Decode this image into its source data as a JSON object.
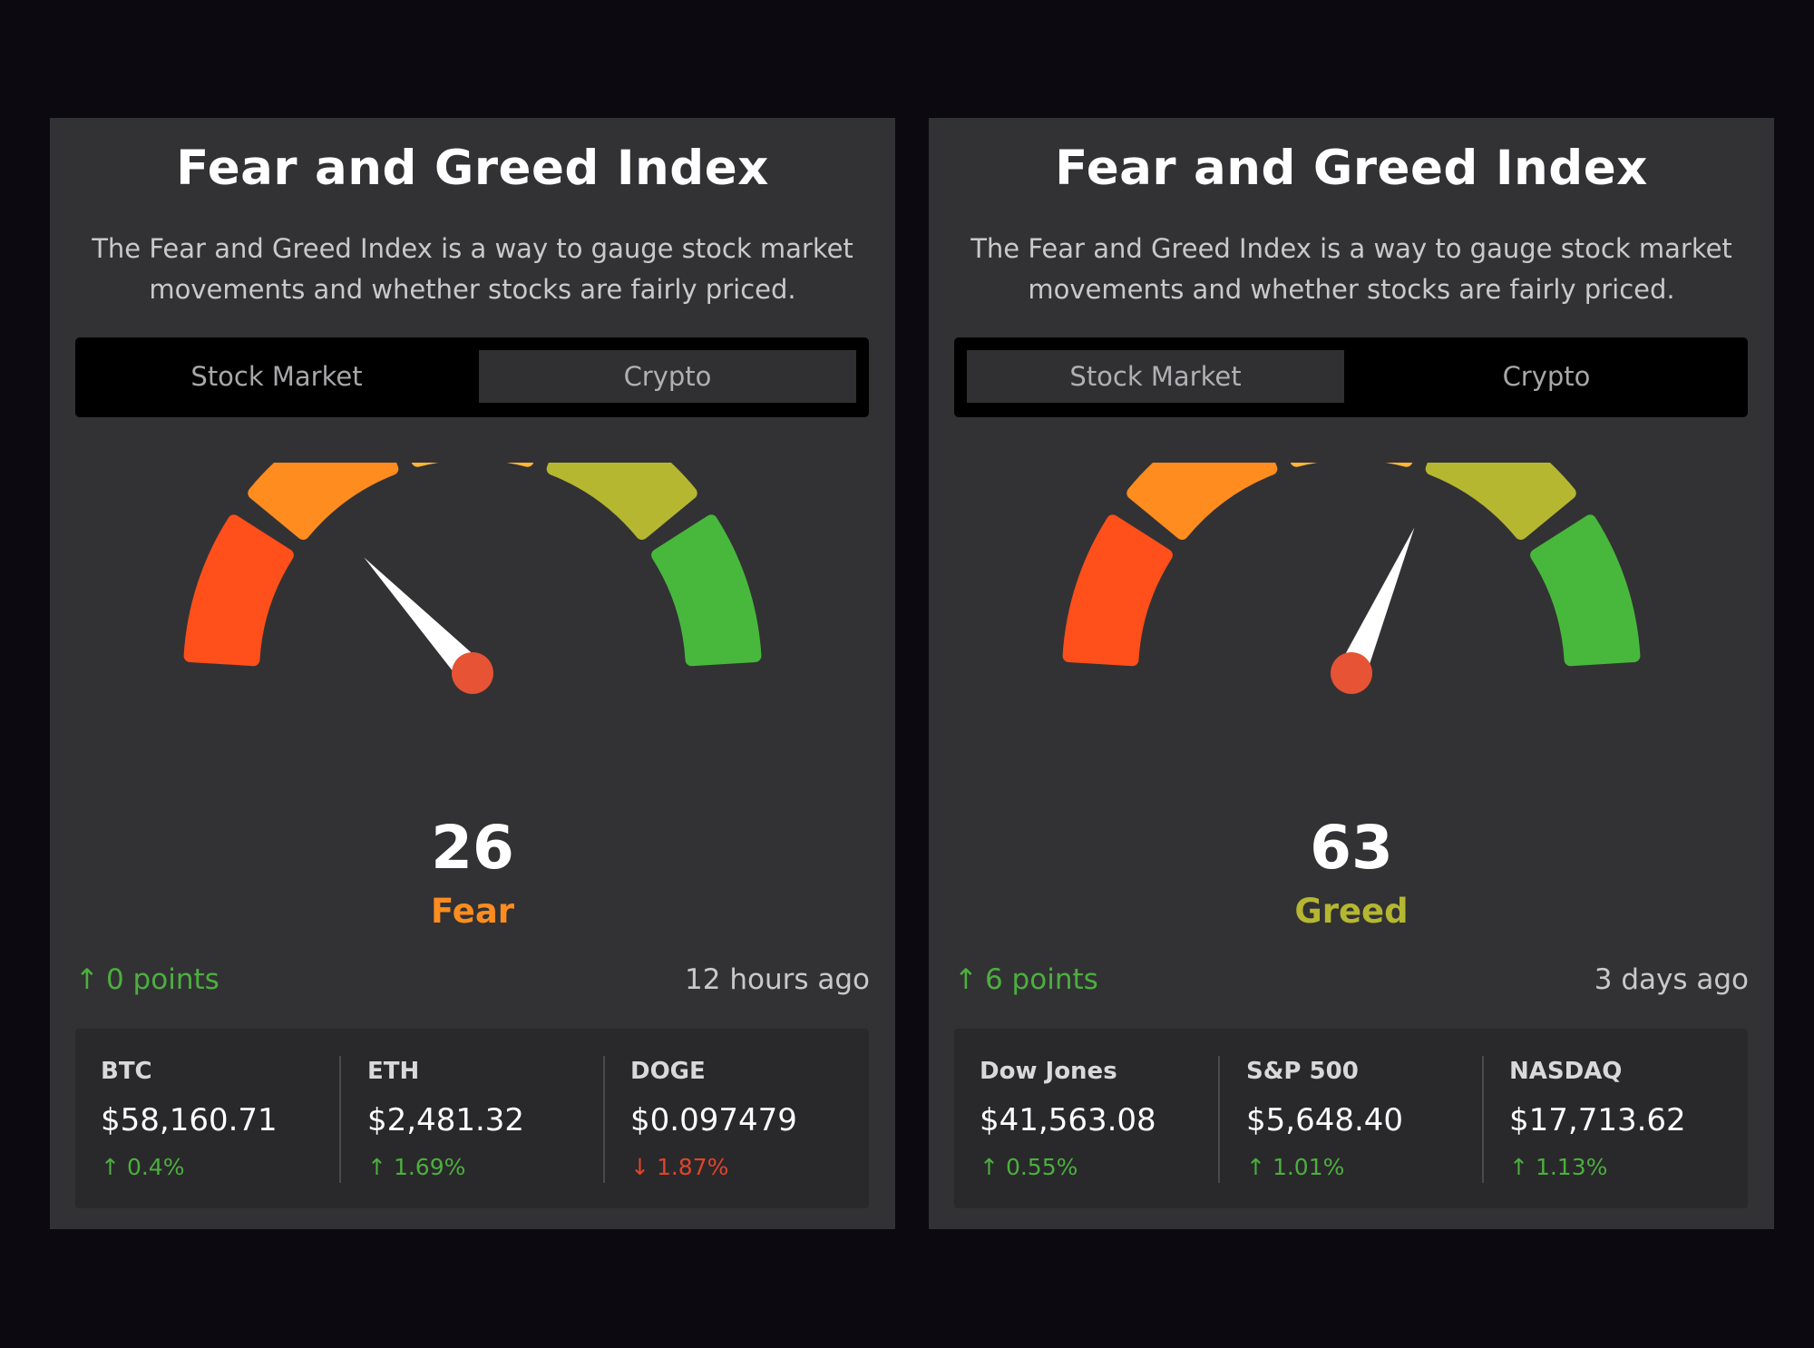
{
  "colors": {
    "background": "#0c0a10",
    "card": "#323234",
    "extreme_fear": "#ff4f1a",
    "fear": "#ff8c1f",
    "neutral": "#ffb637",
    "greed": "#b5b731",
    "extreme_greed": "#48b83c",
    "needle_pivot": "#e65335",
    "up": "#4caf3e",
    "down": "#e0442b"
  },
  "cards": [
    {
      "title": "Fear and Greed Index",
      "description": "The Fear and Greed Index is a way to gauge stock market movements and whether stocks are fairly priced.",
      "tabs": [
        {
          "label": "Stock Market",
          "active": false
        },
        {
          "label": "Crypto",
          "active": true
        }
      ],
      "score": 26,
      "score_text": "26",
      "label": "Fear",
      "label_color": "#ff8c1f",
      "change_icon": "arrow-up-icon",
      "change_arrow": "↑",
      "change_text": "0 points",
      "updated": "12 hours ago",
      "tickers": [
        {
          "name": "BTC",
          "price": "$58,160.71",
          "arrow": "↑",
          "icon": "arrow-up-icon",
          "change": "0.4%",
          "color": "#4caf3e"
        },
        {
          "name": "ETH",
          "price": "$2,481.32",
          "arrow": "↑",
          "icon": "arrow-up-icon",
          "change": "1.69%",
          "color": "#4caf3e"
        },
        {
          "name": "DOGE",
          "price": "$0.097479",
          "arrow": "↓",
          "icon": "arrow-down-icon",
          "change": "1.87%",
          "color": "#e0442b"
        }
      ]
    },
    {
      "title": "Fear and Greed Index",
      "description": "The Fear and Greed Index is a way to gauge stock market movements and whether stocks are fairly priced.",
      "tabs": [
        {
          "label": "Stock Market",
          "active": true
        },
        {
          "label": "Crypto",
          "active": false
        }
      ],
      "score": 63,
      "score_text": "63",
      "label": "Greed",
      "label_color": "#b5b731",
      "change_icon": "arrow-up-icon",
      "change_arrow": "↑",
      "change_text": "6 points",
      "updated": "3 days ago",
      "tickers": [
        {
          "name": "Dow Jones",
          "price": "$41,563.08",
          "arrow": "↑",
          "icon": "arrow-up-icon",
          "change": "0.55%",
          "color": "#4caf3e"
        },
        {
          "name": "S&P 500",
          "price": "$5,648.40",
          "arrow": "↑",
          "icon": "arrow-up-icon",
          "change": "1.01%",
          "color": "#4caf3e"
        },
        {
          "name": "NASDAQ",
          "price": "$17,713.62",
          "arrow": "↑",
          "icon": "arrow-up-icon",
          "change": "1.13%",
          "color": "#4caf3e"
        }
      ]
    }
  ]
}
